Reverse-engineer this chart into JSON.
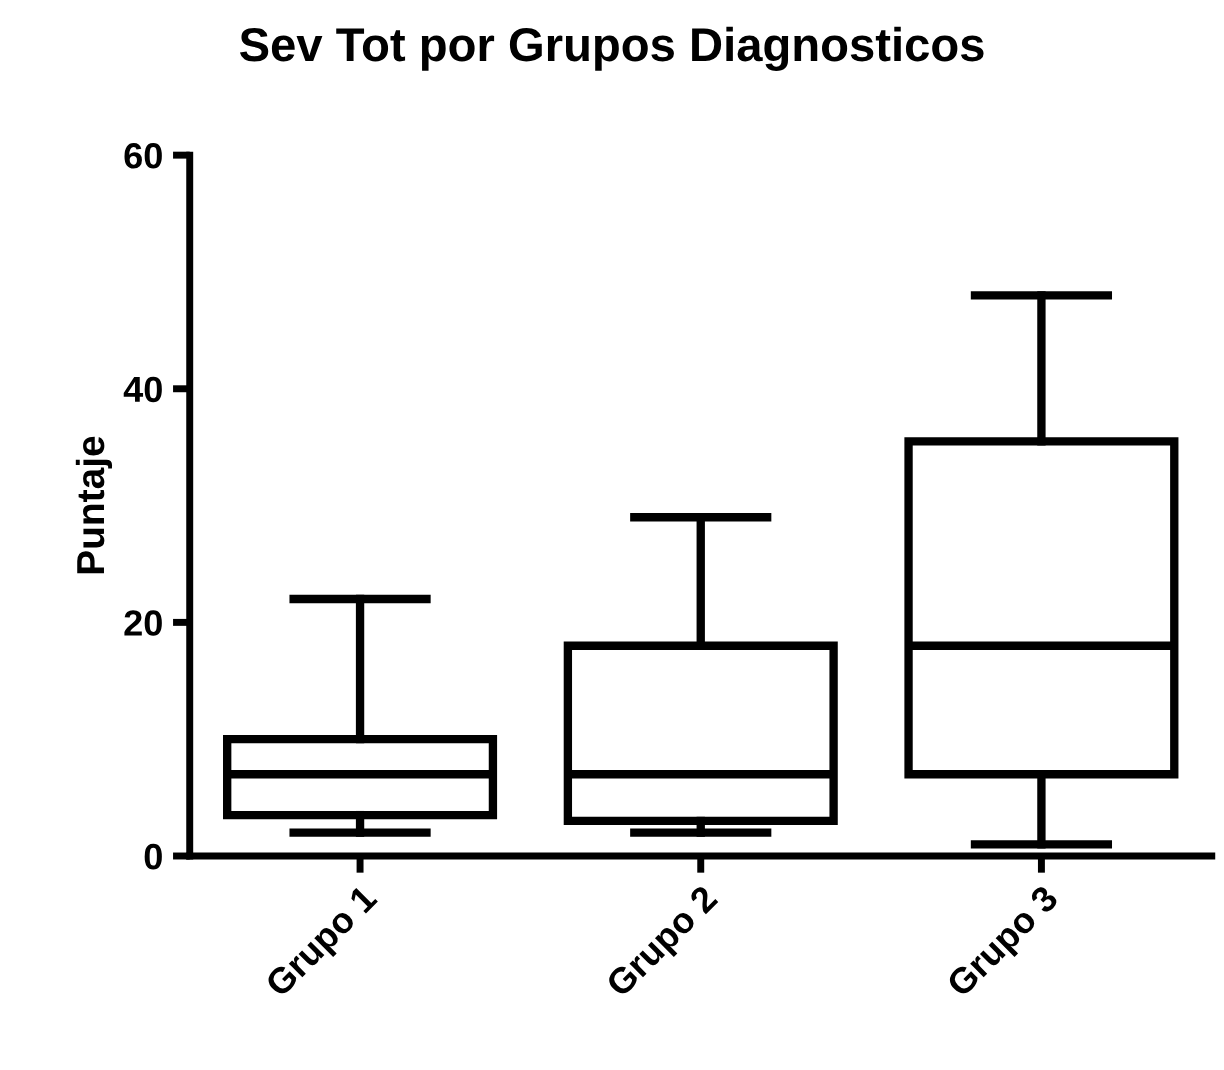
{
  "chart_data": {
    "type": "box",
    "title": "Sev Tot por Grupos Diagnosticos",
    "ylabel": "Puntaje",
    "categories": [
      "Grupo 1",
      "Grupo 2",
      "Grupo 3"
    ],
    "boxes": [
      {
        "low": 2,
        "q1": 3.5,
        "median": 7,
        "q3": 10,
        "high": 22
      },
      {
        "low": 2,
        "q1": 3,
        "median": 7,
        "q3": 18,
        "high": 29
      },
      {
        "low": 1,
        "q1": 7,
        "median": 18,
        "q3": 35.5,
        "high": 48
      }
    ],
    "color": "#000000",
    "ylim": [
      0,
      60
    ],
    "yticks": [
      0,
      20,
      40,
      60
    ],
    "grid": false
  }
}
